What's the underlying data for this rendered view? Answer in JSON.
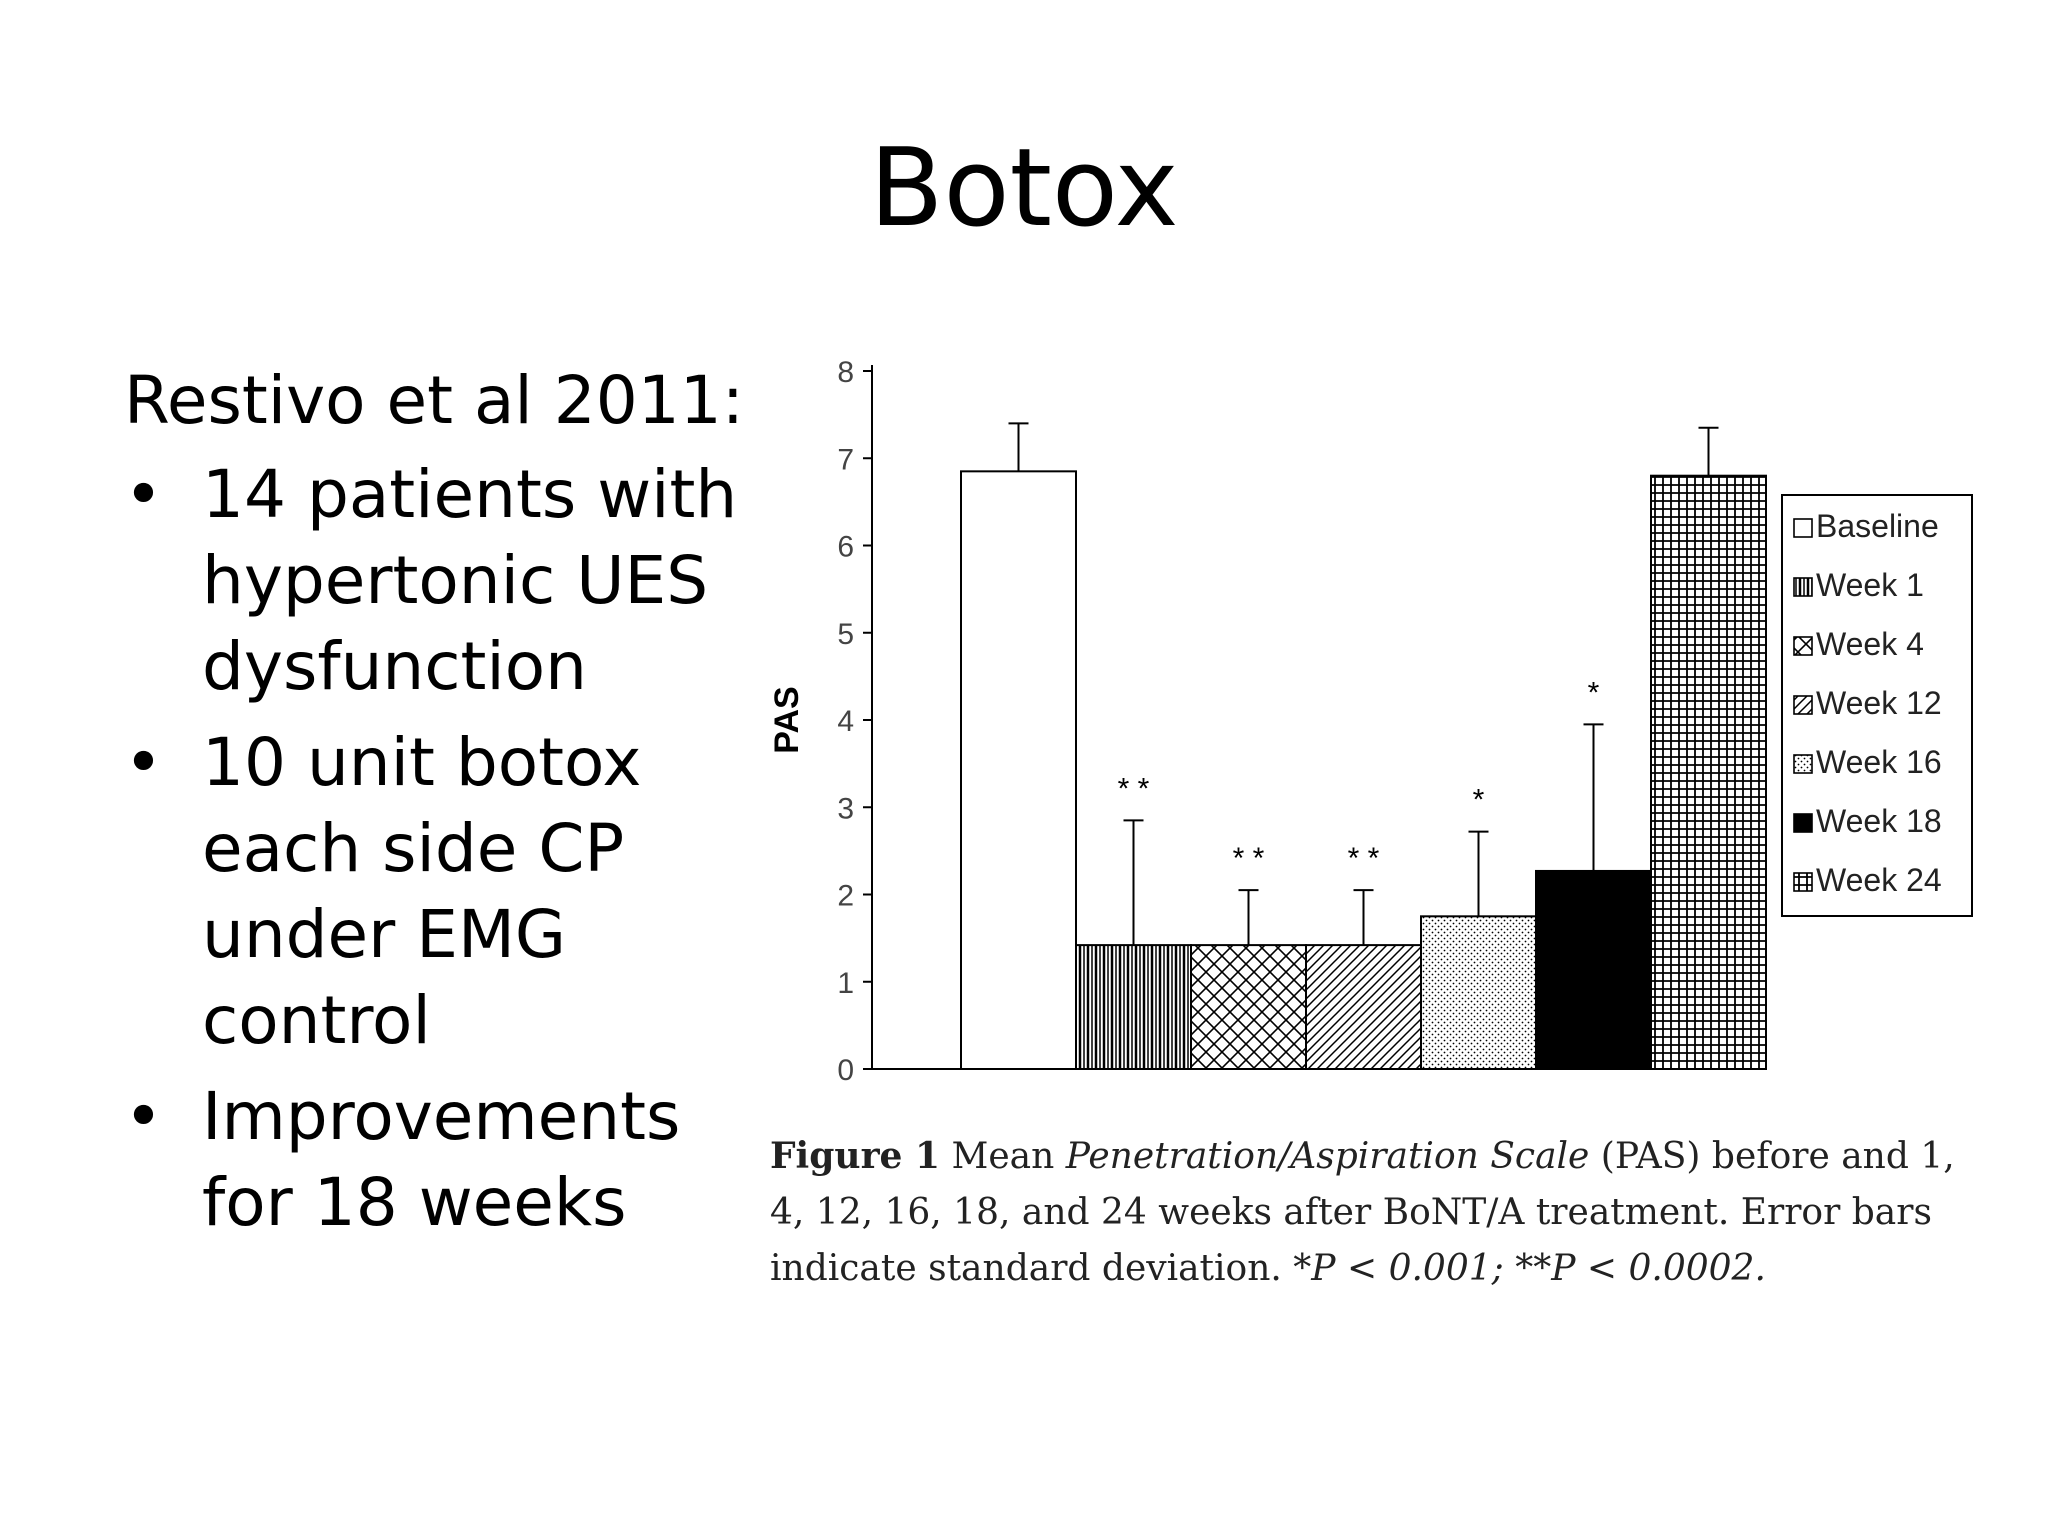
{
  "slide": {
    "title": "Botox",
    "intro": "Restivo et al 2011:",
    "bullets": [
      "14 patients with hypertonic  UES dysfunction",
      "10 unit botox each side CP under EMG control",
      "Improvements for 18 weeks"
    ]
  },
  "chart_data": {
    "type": "bar",
    "ylabel": "PAS",
    "ylim": [
      0,
      8
    ],
    "yticks": [
      "0",
      "1",
      "2",
      "3",
      "4",
      "5",
      "6",
      "7",
      "8"
    ],
    "categories": [
      "Baseline",
      "Week 1",
      "Week 4",
      "Week 12",
      "Week 16",
      "Week 18",
      "Week 24"
    ],
    "values": [
      6.85,
      1.42,
      1.42,
      1.42,
      1.75,
      2.27,
      6.8
    ],
    "error_upper": [
      7.4,
      2.85,
      2.05,
      2.05,
      2.72,
      3.95,
      7.35
    ],
    "significance": [
      "",
      "* *",
      "* *",
      "* *",
      "*",
      "*",
      ""
    ],
    "legend": [
      "Baseline",
      "Week 1",
      "Week 4",
      "Week 12",
      "Week 16",
      "Week 18",
      "Week 24"
    ],
    "legend_position": "right",
    "patterns": [
      "white",
      "vertical-lines",
      "crosshatch-diagonal",
      "diagonal-lines",
      "dots",
      "solid-black",
      "grid"
    ]
  },
  "caption": {
    "label": "Figure 1",
    "part1": " Mean ",
    "italic1": "Penetration/Aspiration Scale",
    "part2": " (PAS) before and 1, 4, 12, 16, 18, and 24 weeks after BoNT/A treatment. Error bars indicate standard deviation. ",
    "italic2": "*P < 0.001; **P < 0.0002."
  }
}
